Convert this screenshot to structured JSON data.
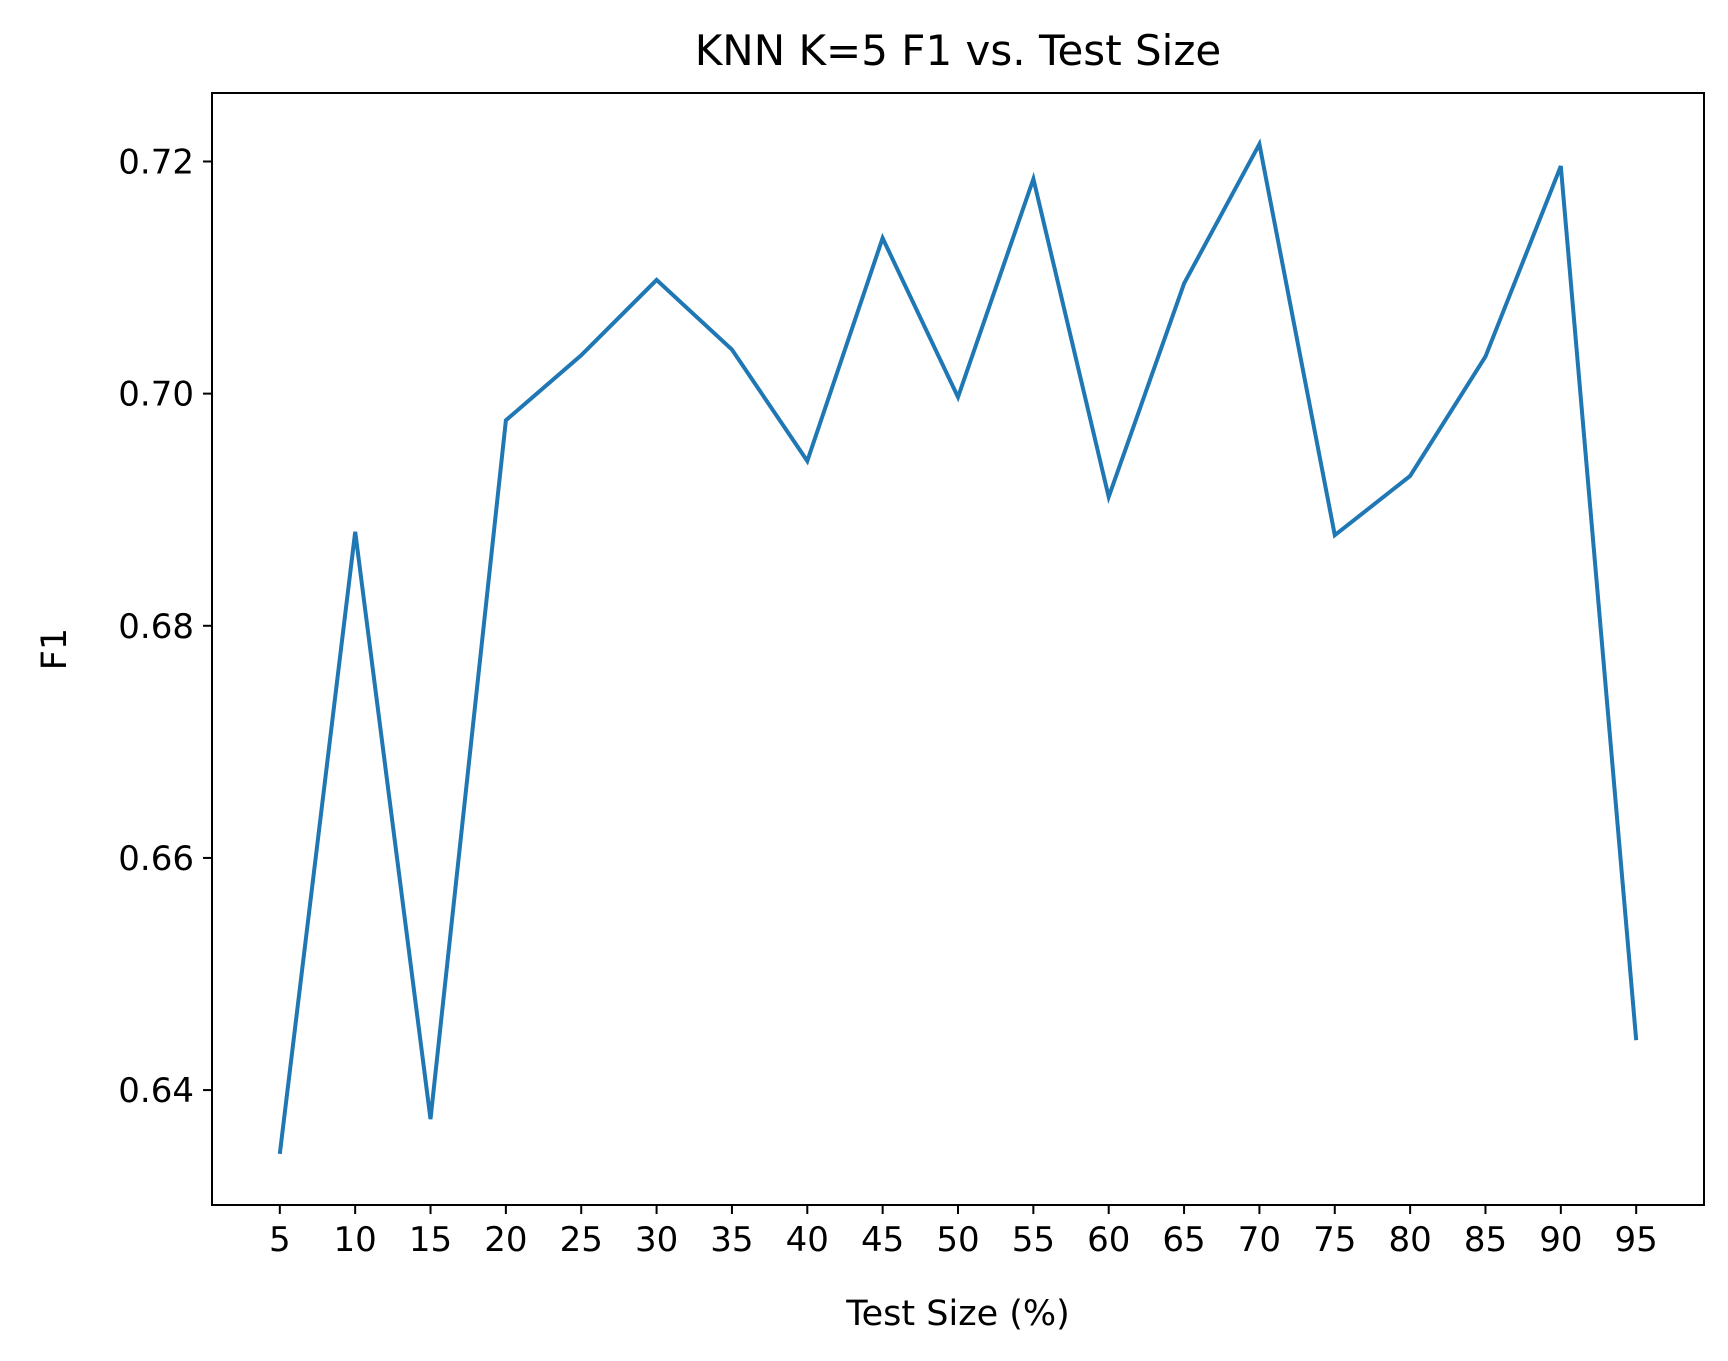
{
  "chart_data": {
    "type": "line",
    "title": "KNN K=5  F1 vs. Test Size",
    "xlabel": "Test Size (%)",
    "ylabel": "F1",
    "x": [
      5,
      10,
      15,
      20,
      25,
      30,
      35,
      40,
      45,
      50,
      55,
      60,
      65,
      70,
      75,
      80,
      85,
      90,
      95
    ],
    "series": [
      {
        "color": "#1f77b4",
        "values": [
          0.6345,
          0.6881,
          0.6375,
          0.6977,
          0.7033,
          0.7098,
          0.7038,
          0.6942,
          0.7134,
          0.6997,
          0.7185,
          0.6911,
          0.7095,
          0.7215,
          0.6878,
          0.6929,
          0.7032,
          0.7196,
          0.6443
        ]
      }
    ],
    "xticks": [
      "5",
      "10",
      "15",
      "20",
      "25",
      "30",
      "35",
      "40",
      "45",
      "50",
      "55",
      "60",
      "65",
      "70",
      "75",
      "80",
      "85",
      "90",
      "95"
    ],
    "yticks": [
      "0.64",
      "0.66",
      "0.68",
      "0.70",
      "0.72"
    ],
    "ytick_values": [
      0.64,
      0.66,
      0.68,
      0.7,
      0.72
    ],
    "xlim": [
      0.5,
      99.5
    ],
    "ylim": [
      0.6301,
      0.7259
    ],
    "grid": false,
    "legend": "none"
  }
}
